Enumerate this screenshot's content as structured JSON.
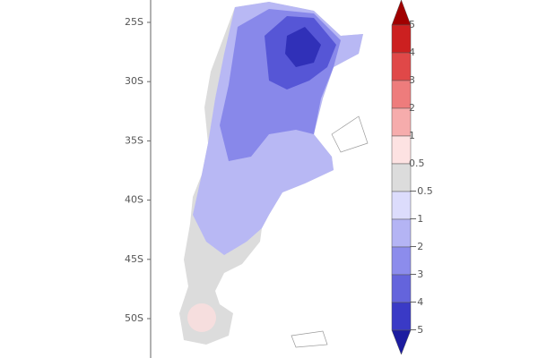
{
  "map": {
    "lat_labels": [
      "25S",
      "30S",
      "35S",
      "40S",
      "45S",
      "50S"
    ],
    "colorbar": {
      "labels": [
        "5",
        "4",
        "3",
        "2",
        "1",
        "0.5",
        "−0.5",
        "−1",
        "−2",
        "−3",
        "−4",
        "−5"
      ],
      "colors": [
        "#a00000",
        "#cc2020",
        "#e04848",
        "#ee7c7c",
        "#f6acac",
        "#fde2e2",
        "#dcdcdc",
        "#dcdcfc",
        "#b4b4f4",
        "#8c8cec",
        "#6464dc",
        "#3a3ac6",
        "#1c1ca0"
      ]
    }
  }
}
